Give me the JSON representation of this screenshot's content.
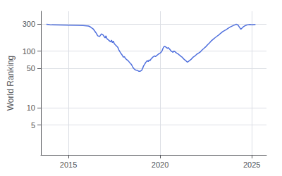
{
  "chart_data": {
    "type": "line",
    "ylabel": "World Ranking",
    "log": "y",
    "grid": true,
    "xlim": [
      2013.5,
      2025.8
    ],
    "xticks": [
      2015,
      2020,
      2025
    ],
    "ylim": [
      1.5,
      500
    ],
    "yticks": [
      5,
      10,
      50,
      100,
      300
    ],
    "x": [
      2013.8,
      2013.9,
      2014.0,
      2014.1,
      2015.5,
      2015.8,
      2016.1,
      2016.2,
      2016.35,
      2016.5,
      2016.6,
      2016.7,
      2016.8,
      2016.9,
      2017.0,
      2017.05,
      2017.1,
      2017.2,
      2017.3,
      2017.35,
      2017.4,
      2017.45,
      2017.5,
      2017.6,
      2017.65,
      2017.7,
      2017.75,
      2017.8,
      2017.85,
      2017.9,
      2017.95,
      2018.0,
      2018.05,
      2018.1,
      2018.15,
      2018.2,
      2018.25,
      2018.3,
      2018.35,
      2018.4,
      2018.45,
      2018.5,
      2018.55,
      2018.6,
      2018.65,
      2018.7,
      2018.75,
      2018.8,
      2018.85,
      2018.9,
      2018.95,
      2019.0,
      2019.05,
      2019.1,
      2019.15,
      2019.2,
      2019.25,
      2019.3,
      2019.35,
      2019.4,
      2019.45,
      2019.5,
      2019.55,
      2019.6,
      2019.65,
      2019.7,
      2019.75,
      2019.8,
      2019.85,
      2019.9,
      2019.95,
      2020.0,
      2020.05,
      2020.1,
      2020.15,
      2020.2,
      2020.25,
      2020.3,
      2020.35,
      2020.4,
      2020.45,
      2020.5,
      2020.55,
      2020.6,
      2020.65,
      2020.7,
      2020.75,
      2020.8,
      2020.85,
      2020.9,
      2020.95,
      2021.0,
      2021.05,
      2021.1,
      2021.15,
      2021.2,
      2021.25,
      2021.3,
      2021.35,
      2021.4,
      2021.45,
      2021.5,
      2021.55,
      2021.6,
      2021.65,
      2021.7,
      2021.75,
      2021.8,
      2021.85,
      2021.9,
      2021.95,
      2022.0,
      2022.1,
      2022.2,
      2022.3,
      2022.4,
      2022.5,
      2022.6,
      2022.7,
      2022.8,
      2022.9,
      2023.0,
      2023.1,
      2023.2,
      2023.3,
      2023.4,
      2023.5,
      2023.6,
      2023.7,
      2023.8,
      2023.9,
      2024.0,
      2024.1,
      2024.15,
      2024.2,
      2024.25,
      2024.3,
      2024.35,
      2024.4,
      2024.45,
      2024.5,
      2024.55,
      2024.6,
      2024.65,
      2024.7,
      2024.75,
      2024.8,
      2024.85,
      2024.9,
      2024.95,
      2025.0,
      2025.1,
      2025.2
    ],
    "values": [
      295,
      293,
      290,
      288,
      283,
      281,
      275,
      265,
      245,
      210,
      185,
      180,
      200,
      190,
      170,
      185,
      165,
      155,
      145,
      155,
      140,
      150,
      135,
      125,
      120,
      115,
      105,
      98,
      92,
      88,
      83,
      78,
      80,
      75,
      72,
      70,
      68,
      65,
      62,
      60,
      57,
      53,
      50,
      48,
      47,
      46,
      46,
      45,
      44,
      44,
      45,
      46,
      50,
      55,
      58,
      62,
      65,
      68,
      65,
      70,
      68,
      72,
      75,
      78,
      80,
      82,
      80,
      83,
      85,
      88,
      90,
      92,
      95,
      100,
      110,
      118,
      122,
      118,
      115,
      112,
      115,
      110,
      105,
      100,
      98,
      95,
      100,
      98,
      95,
      92,
      90,
      88,
      85,
      83,
      80,
      78,
      75,
      72,
      70,
      68,
      65,
      64,
      66,
      68,
      70,
      72,
      75,
      78,
      80,
      82,
      85,
      88,
      92,
      97,
      105,
      112,
      120,
      130,
      140,
      152,
      162,
      172,
      182,
      192,
      205,
      218,
      228,
      238,
      250,
      262,
      272,
      282,
      290,
      295,
      292,
      285,
      270,
      255,
      242,
      250,
      260,
      268,
      275,
      280,
      285,
      288,
      290,
      292,
      293,
      292,
      290,
      292,
      293
    ]
  }
}
